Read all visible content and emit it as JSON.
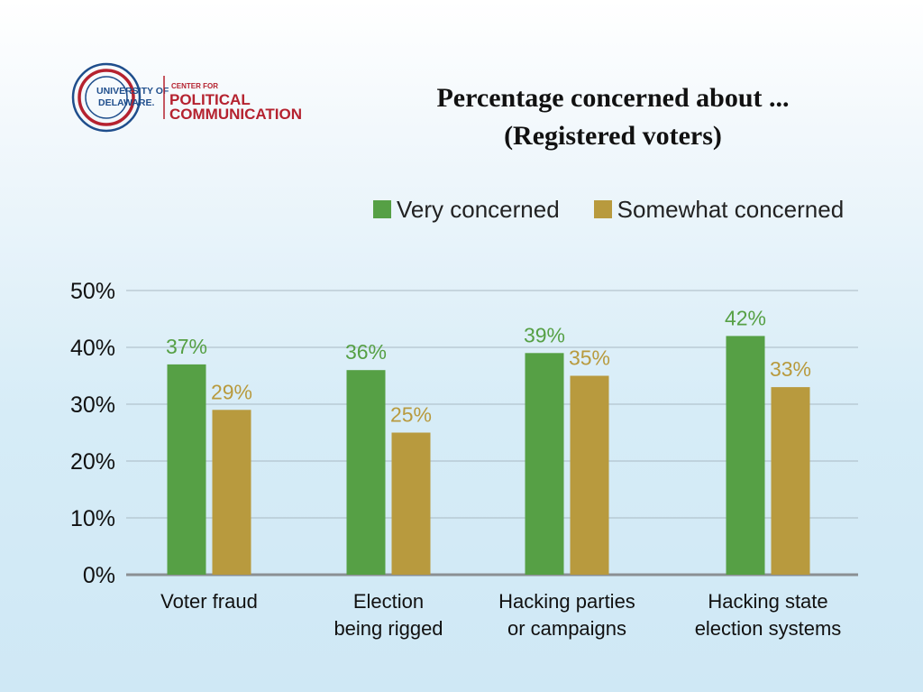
{
  "logo": {
    "university_line1": "UNIVERSITY OF",
    "university_line2": "DELAWARE.",
    "center_for": "CENTER FOR",
    "political": "POLITICAL",
    "communication": "COMMUNICATION",
    "colors": {
      "red": "#b5222f",
      "blue": "#1f4e8c"
    }
  },
  "chart_data": {
    "type": "bar",
    "title": "Percentage concerned about ...",
    "subtitle": "(Registered voters)",
    "categories": [
      [
        "Voter fraud"
      ],
      [
        "Election",
        "being rigged"
      ],
      [
        "Hacking parties",
        "or campaigns"
      ],
      [
        "Hacking state",
        "election systems"
      ]
    ],
    "series": [
      {
        "name": "Very concerned",
        "color": "#56a045",
        "values": [
          37,
          36,
          39,
          42
        ],
        "labels": [
          "37%",
          "36%",
          "39%",
          "42%"
        ]
      },
      {
        "name": "Somewhat concerned",
        "color": "#b89a3e",
        "values": [
          29,
          25,
          35,
          33
        ],
        "labels": [
          "29%",
          "25%",
          "35%",
          "33%"
        ]
      }
    ],
    "y_ticks": [
      "0%",
      "10%",
      "20%",
      "30%",
      "40%",
      "50%"
    ],
    "ylim": [
      0,
      50
    ],
    "grid": true,
    "legend_position": "top"
  }
}
